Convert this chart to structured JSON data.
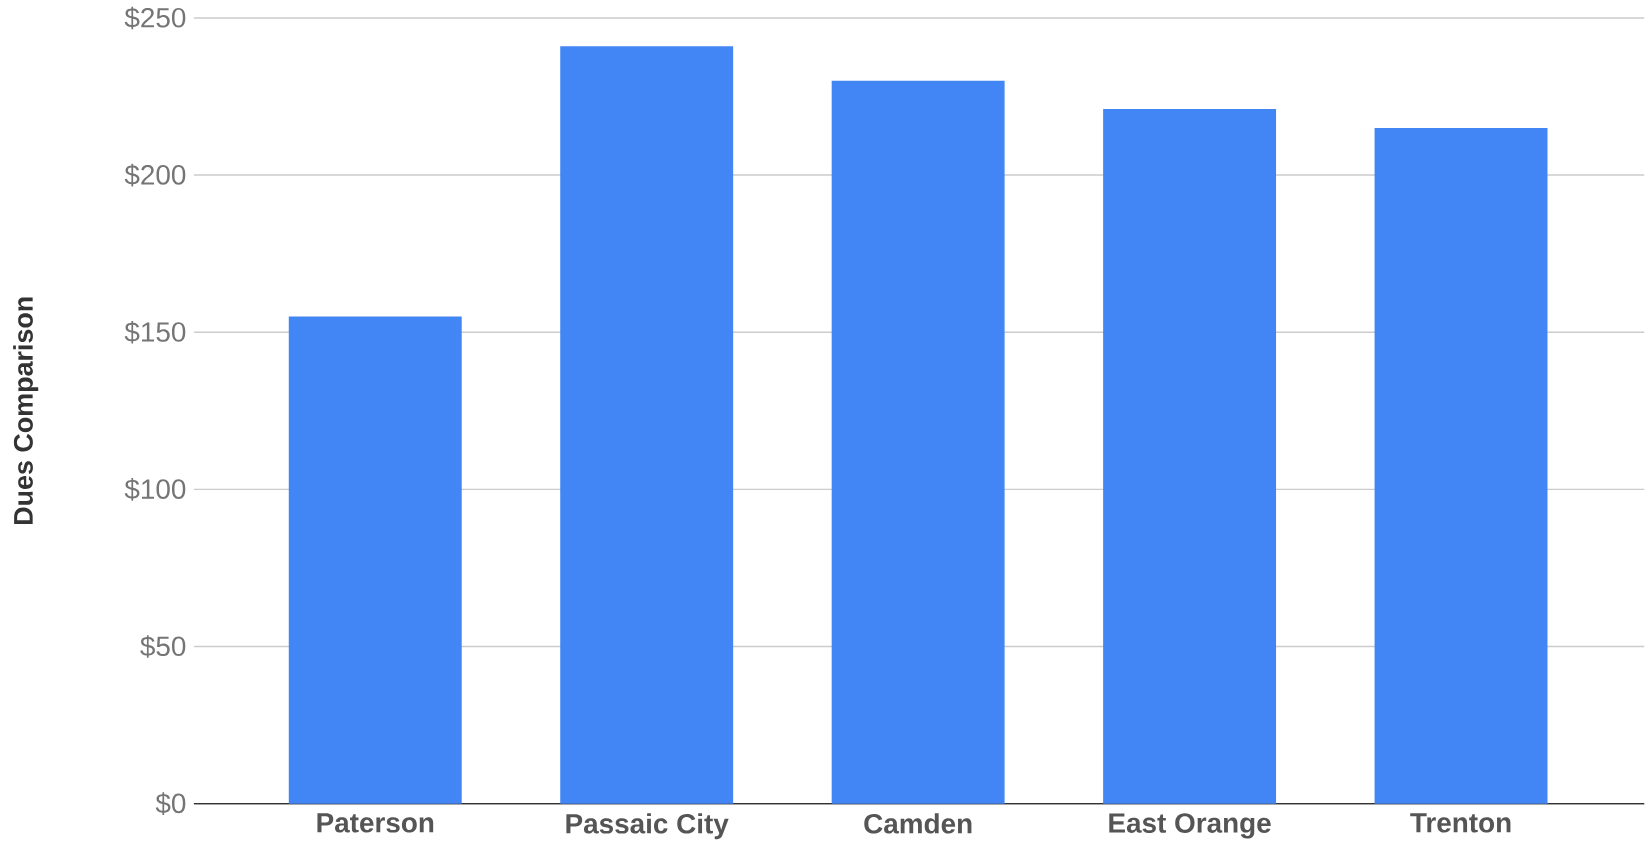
{
  "chart_data": {
    "type": "bar",
    "ylabel": "Dues Comparison",
    "categories": [
      "Paterson",
      "Passaic City",
      "Camden",
      "East Orange",
      "Trenton"
    ],
    "values": [
      155,
      241,
      230,
      221,
      215
    ],
    "color": "#4285f4",
    "ylim": [
      0,
      250
    ],
    "yticks": [
      {
        "value": 0,
        "label": "$0"
      },
      {
        "value": 50,
        "label": "$50"
      },
      {
        "value": 100,
        "label": "$100"
      },
      {
        "value": 150,
        "label": "$150"
      },
      {
        "value": 200,
        "label": "$200"
      },
      {
        "value": 250,
        "label": "$250"
      }
    ],
    "grid": "y"
  }
}
